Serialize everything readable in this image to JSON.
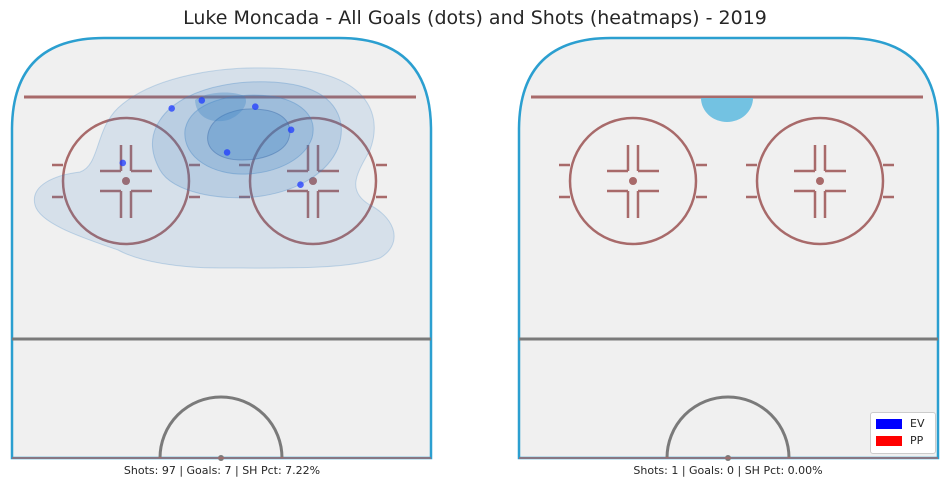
{
  "chart_data": {
    "type": "scatter",
    "title": "Luke Moncada - All Goals (dots) and Shots (heatmaps) - 2019",
    "legend": {
      "placement": "lower-right",
      "entries": [
        {
          "label": "EV",
          "color": "#0000ff"
        },
        {
          "label": "PP",
          "color": "#ff0000"
        }
      ]
    },
    "panels": [
      {
        "id": "ev",
        "caption": "Shots: 97 | Goals: 7 | SH Pct: 7.22%",
        "shots": 97,
        "goals_count": 7,
        "sh_pct": 7.22,
        "goal_color": "#1f3bff",
        "heat_color": "#3b82c4",
        "goals": [
          [
            -0.21,
            85.1
          ],
          [
            -0.53,
            83.2
          ],
          [
            0.36,
            83.6
          ],
          [
            0.74,
            78.1
          ],
          [
            0.06,
            72.7
          ],
          [
            -1.05,
            70.2
          ],
          [
            0.84,
            65.0
          ]
        ]
      },
      {
        "id": "pp",
        "caption": "Shots: 1 | Goals: 0 | SH Pct: 0.00%",
        "shots": 1,
        "goals_count": 0,
        "sh_pct": 0.0,
        "goal_color": "#ff0000",
        "heat_color": "#6bbfe0",
        "goals": []
      }
    ]
  }
}
